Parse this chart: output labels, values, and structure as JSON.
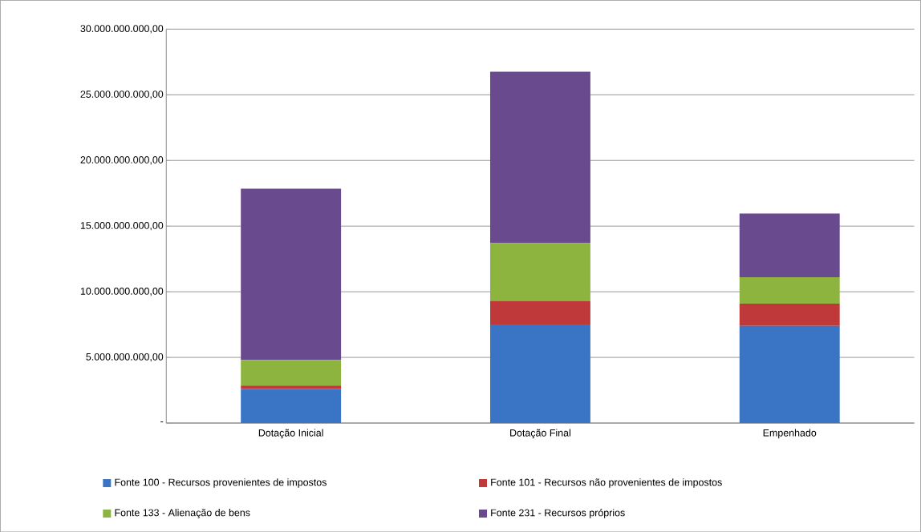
{
  "chart_data": {
    "type": "bar",
    "stacked": true,
    "grid": "y",
    "legend": "bottom",
    "categories": [
      "Dotação Inicial",
      "Dotação Final",
      "Empenhado"
    ],
    "series": [
      {
        "name": "Fonte 100 - Recursos provenientes de impostos",
        "color": "#3a74c4",
        "values": [
          2600000000,
          7500000000,
          7400000000
        ]
      },
      {
        "name": "Fonte 101 - Recursos não provenientes de impostos",
        "color": "#c0393a",
        "values": [
          250000000,
          1800000000,
          1700000000
        ]
      },
      {
        "name": "Fonte 133 - Alienação de bens",
        "color": "#8db43f",
        "values": [
          1950000000,
          4400000000,
          2000000000
        ]
      },
      {
        "name": "Fonte 231 - Recursos próprios",
        "color": "#6a4a8e",
        "values": [
          13050000000,
          13050000000,
          4850000000
        ]
      }
    ],
    "ylim": [
      0,
      30000000000
    ],
    "yticks": [
      {
        "value": 0,
        "label": "-"
      },
      {
        "value": 5000000000,
        "label": "5.000.000.000,00"
      },
      {
        "value": 10000000000,
        "label": "10.000.000.000,00"
      },
      {
        "value": 15000000000,
        "label": "15.000.000.000,00"
      },
      {
        "value": 20000000000,
        "label": "20.000.000.000,00"
      },
      {
        "value": 25000000000,
        "label": "25.000.000.000,00"
      },
      {
        "value": 30000000000,
        "label": "30.000.000.000,00"
      }
    ]
  }
}
